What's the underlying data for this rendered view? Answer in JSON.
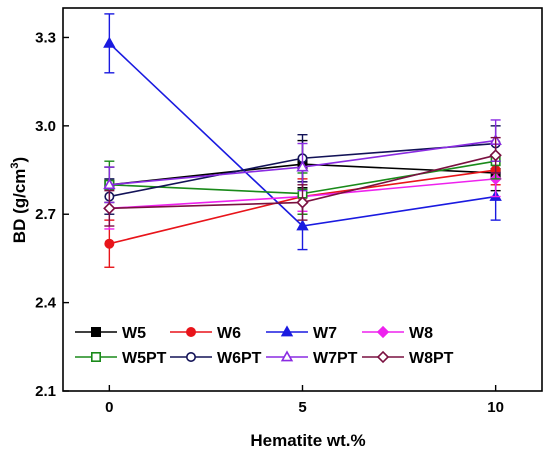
{
  "chart_data": {
    "type": "line",
    "title": "",
    "xlabel": "Hematite wt.%",
    "ylabel_main": "BD (g/cm",
    "ylabel_sup": "3",
    "ylabel_close": ")",
    "x": [
      0,
      5,
      10
    ],
    "xlim": [
      -1.2,
      11.2
    ],
    "ylim": [
      2.1,
      3.4
    ],
    "xticks": [
      0,
      5,
      10
    ],
    "yticks": [
      2.1,
      2.4,
      2.7,
      3.0,
      3.3
    ],
    "xtick_labels": [
      "0",
      "5",
      "10"
    ],
    "ytick_labels": [
      "2.1",
      "2.4",
      "2.7",
      "3.0",
      "3.3"
    ],
    "grid": false,
    "legend_position": "bottom-left",
    "series": [
      {
        "name": "W5",
        "color": "#000000",
        "marker": "square",
        "filled": true,
        "values": [
          2.8,
          2.87,
          2.84
        ],
        "errors": [
          0.06,
          0.08,
          0.06
        ]
      },
      {
        "name": "W6",
        "color": "#e8141a",
        "marker": "circle",
        "filled": true,
        "values": [
          2.6,
          2.76,
          2.85
        ],
        "errors": [
          0.08,
          0.06,
          0.05
        ]
      },
      {
        "name": "W7",
        "color": "#1a1ae0",
        "marker": "triangle",
        "filled": true,
        "values": [
          3.28,
          2.66,
          2.76
        ],
        "errors": [
          0.1,
          0.08,
          0.08
        ]
      },
      {
        "name": "W8",
        "color": "#ee22ee",
        "marker": "diamond",
        "filled": true,
        "values": [
          2.72,
          2.76,
          2.82
        ],
        "errors": [
          0.07,
          0.05,
          0.06
        ]
      },
      {
        "name": "W5PT",
        "color": "#1a8a1a",
        "marker": "square",
        "filled": false,
        "values": [
          2.8,
          2.77,
          2.88
        ],
        "errors": [
          0.08,
          0.07,
          0.06
        ]
      },
      {
        "name": "W6PT",
        "color": "#121257",
        "marker": "circle",
        "filled": false,
        "values": [
          2.76,
          2.89,
          2.94
        ],
        "errors": [
          0.06,
          0.08,
          0.06
        ]
      },
      {
        "name": "W7PT",
        "color": "#8a2be2",
        "marker": "triangle",
        "filled": false,
        "values": [
          2.8,
          2.86,
          2.95
        ],
        "errors": [
          0.06,
          0.08,
          0.07
        ]
      },
      {
        "name": "W8PT",
        "color": "#7a1040",
        "marker": "diamond",
        "filled": false,
        "values": [
          2.72,
          2.74,
          2.9
        ],
        "errors": [
          0.06,
          0.06,
          0.06
        ]
      }
    ]
  }
}
